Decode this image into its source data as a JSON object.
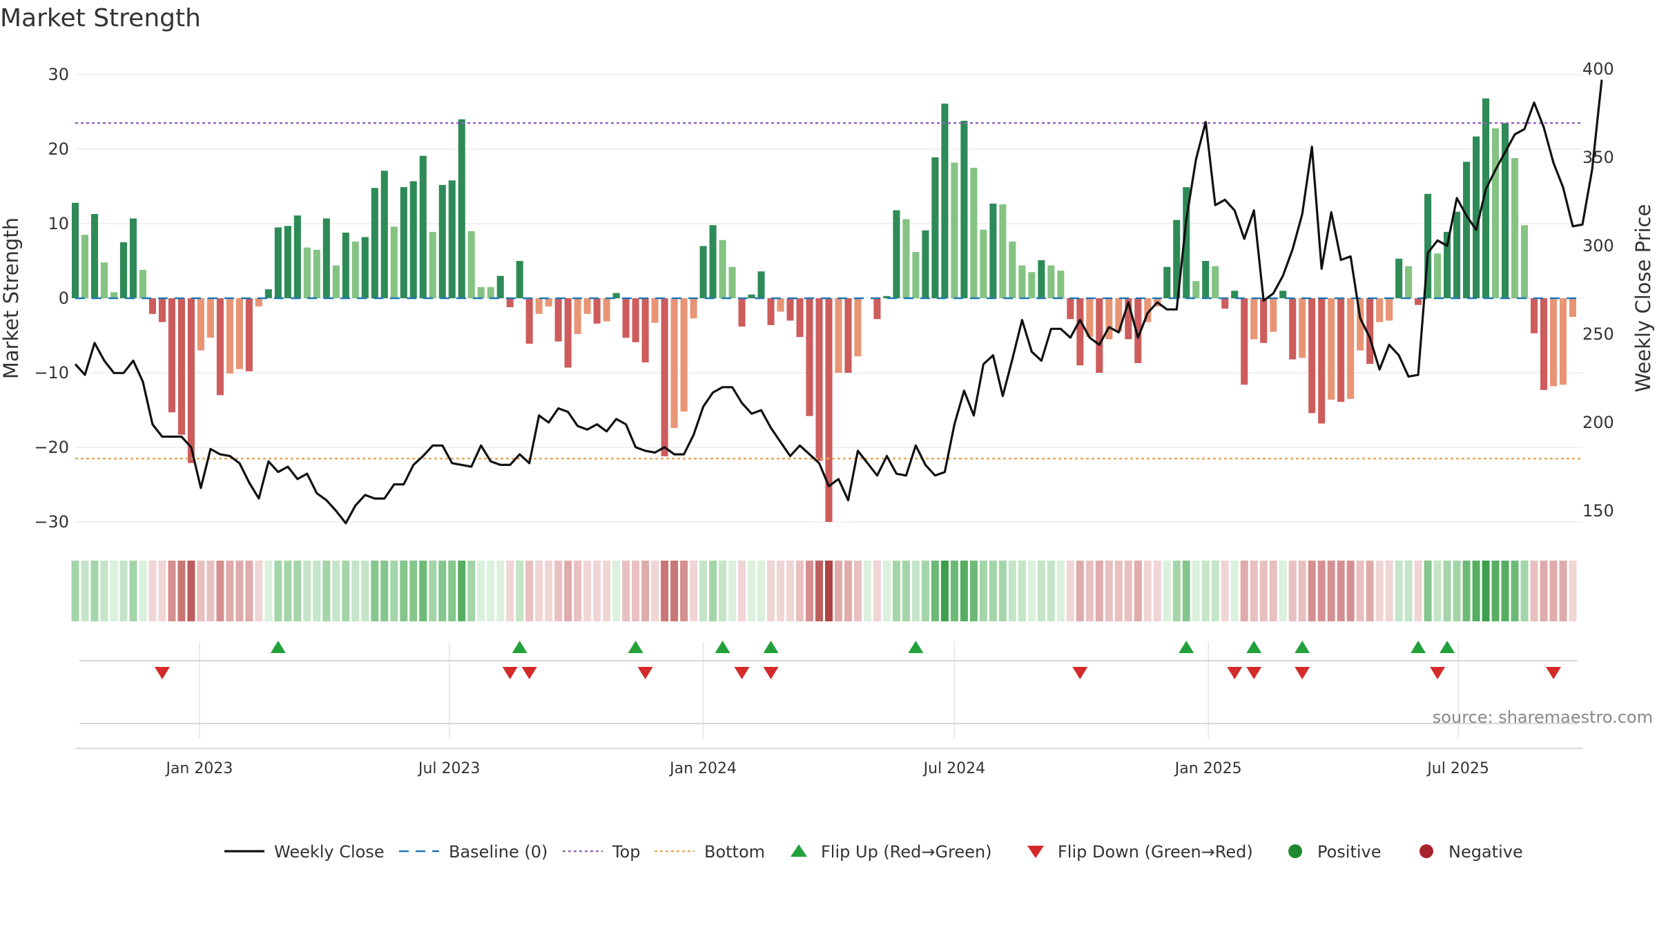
{
  "chart_data": {
    "type": "bar",
    "title": "Market Strength",
    "ylabel": "Market Strength",
    "y2label": "Weekly Close Price",
    "ylim": [
      -30,
      30
    ],
    "y2lim": [
      150,
      400
    ],
    "yticks": [
      30,
      20,
      10,
      0,
      -10,
      -20,
      -30
    ],
    "y2ticks": [
      400,
      350,
      300,
      250,
      200,
      150
    ],
    "x_range": [
      "2022-10-03",
      "2025-09-29"
    ],
    "xticks": [
      {
        "date": "2023-01-01",
        "label": "Jan 2023"
      },
      {
        "date": "2023-07-01",
        "label": "Jul 2023"
      },
      {
        "date": "2024-01-01",
        "label": "Jan 2024"
      },
      {
        "date": "2024-07-01",
        "label": "Jul 2024"
      },
      {
        "date": "2025-01-01",
        "label": "Jan 2025"
      },
      {
        "date": "2025-07-01",
        "label": "Jul 2025"
      }
    ],
    "grid": true,
    "top_line": 23.5,
    "bottom_line": -21.5,
    "baseline": 0,
    "start_date": "2022-10-03",
    "strength": [
      12.8,
      8.5,
      11.3,
      4.8,
      0.8,
      7.5,
      10.7,
      3.8,
      -2.1,
      -3.2,
      -15.3,
      -18.3,
      -22.1,
      -7.0,
      -5.3,
      -13.0,
      -10.1,
      -9.5,
      -9.8,
      -1.1,
      1.2,
      9.5,
      9.7,
      11.1,
      6.8,
      6.5,
      10.7,
      4.4,
      8.8,
      7.6,
      8.2,
      14.8,
      17.1,
      9.6,
      14.9,
      15.7,
      19.1,
      8.9,
      15.2,
      15.8,
      24.0,
      9.0,
      1.5,
      1.5,
      3.0,
      -1.2,
      5.0,
      -6.1,
      -2.1,
      -1.1,
      -5.8,
      -9.3,
      -4.8,
      -2.1,
      -3.4,
      -3.1,
      0.7,
      -5.3,
      -5.9,
      -8.6,
      -3.3,
      -21.2,
      -17.4,
      -15.2,
      -2.7,
      7.0,
      9.8,
      7.8,
      4.2,
      -3.8,
      0.5,
      3.6,
      -3.6,
      -1.8,
      -3.0,
      -5.2,
      -15.8,
      -21.8,
      -30.0,
      -10.0,
      -10.0,
      -7.8,
      0,
      -2.8,
      0.3,
      11.8,
      10.6,
      6.2,
      9.1,
      18.9,
      26.1,
      18.2,
      23.8,
      17.5,
      9.2,
      12.7,
      12.6,
      7.6,
      4.4,
      3.5,
      5.1,
      4.4,
      3.7,
      -2.8,
      -9.0,
      -5.2,
      -10.0,
      -5.5,
      -4.5,
      -5.5,
      -8.7,
      -3.2,
      -1.1,
      4.2,
      10.5,
      14.9,
      2.3,
      5.0,
      4.3,
      -1.4,
      1.0,
      -11.6,
      -5.5,
      -6.0,
      -4.5,
      1.0,
      -8.2,
      -8.0,
      -15.4,
      -16.8,
      -13.6,
      -13.9,
      -13.5,
      -7.0,
      -8.8,
      -3.2,
      -3.0,
      5.3,
      4.3,
      -0.9,
      14.0,
      6.0,
      8.9,
      11.6,
      18.3,
      21.7,
      26.8,
      22.8,
      23.5,
      18.8,
      9.8,
      -4.7,
      -12.3,
      -11.8,
      -11.6,
      -2.5
    ],
    "weekly_close": [
      233,
      227,
      245,
      235,
      228,
      228,
      235,
      223,
      199,
      192,
      192,
      192,
      186,
      163,
      185,
      182,
      181,
      177,
      166,
      157,
      178,
      172,
      175,
      168,
      171,
      160,
      156,
      150,
      143,
      153,
      159,
      157,
      157,
      165,
      165,
      176,
      181,
      187,
      187,
      177,
      176,
      175,
      187,
      178,
      176,
      176,
      182,
      177,
      204,
      200,
      208,
      206,
      198,
      196,
      199,
      195,
      202,
      199,
      186,
      184,
      183,
      186,
      182,
      182,
      193,
      209,
      217,
      220,
      220,
      211,
      205,
      207,
      197,
      189,
      181,
      187,
      182,
      177,
      164,
      168,
      156,
      184,
      177,
      170,
      181,
      171,
      170,
      187,
      176,
      170,
      172,
      199,
      218,
      204,
      233,
      238,
      215,
      236,
      258,
      240,
      235,
      253,
      253,
      248,
      258,
      248,
      244,
      254,
      251,
      268,
      248,
      262,
      268,
      264,
      264,
      315,
      349,
      370,
      323,
      326,
      320,
      304,
      320,
      269,
      273,
      283,
      298,
      318,
      356,
      287,
      319,
      292,
      294,
      259,
      248,
      230,
      244,
      238,
      226,
      227,
      296,
      303,
      300,
      327,
      317,
      309,
      332,
      343,
      353,
      363,
      366,
      381,
      367,
      347,
      333,
      311,
      312,
      343,
      394
    ]
  },
  "strip_colors": {
    "positive": [
      "#dbf0dd",
      "#c4e5c7",
      "#a3d5a9",
      "#85c68d",
      "#6dba76",
      "#57ae62",
      "#3e9e4d"
    ],
    "negative": [
      "#f0d5d5",
      "#e8c0c0",
      "#dfabab",
      "#d49090",
      "#c97676",
      "#bd5e5e",
      "#b04444"
    ]
  },
  "flip_up_weeks": [
    21,
    46,
    58,
    67,
    72,
    87,
    115,
    122,
    127,
    139,
    142
  ],
  "flip_down_weeks": [
    9,
    45,
    47,
    59,
    69,
    72,
    104,
    120,
    122,
    127,
    141,
    153
  ],
  "colors": {
    "bar_strong_pos": "#2e8b57",
    "bar_weak_pos": "#85c383",
    "bar_strong_neg": "#cd5c5c",
    "bar_weak_neg": "#e89576",
    "close_line": "#111111",
    "baseline": "#1f77b4",
    "top": "#9467bd",
    "bottom": "#e4a95a",
    "flip_up": "#22a13a",
    "flip_down": "#d42a2a",
    "positive_dot": "#1e8a2e",
    "negative_dot": "#a8232c"
  },
  "source_text": "source: sharemaestro.com",
  "legend": [
    {
      "key": "close",
      "label": "Weekly Close"
    },
    {
      "key": "baseline",
      "label": "Baseline (0)"
    },
    {
      "key": "top",
      "label": "Top"
    },
    {
      "key": "bottom",
      "label": "Bottom"
    },
    {
      "key": "flip_up",
      "label": "Flip Up (Red→Green)"
    },
    {
      "key": "flip_down",
      "label": "Flip Down (Green→Red)"
    },
    {
      "key": "positive",
      "label": "Positive"
    },
    {
      "key": "negative",
      "label": "Negative"
    }
  ]
}
